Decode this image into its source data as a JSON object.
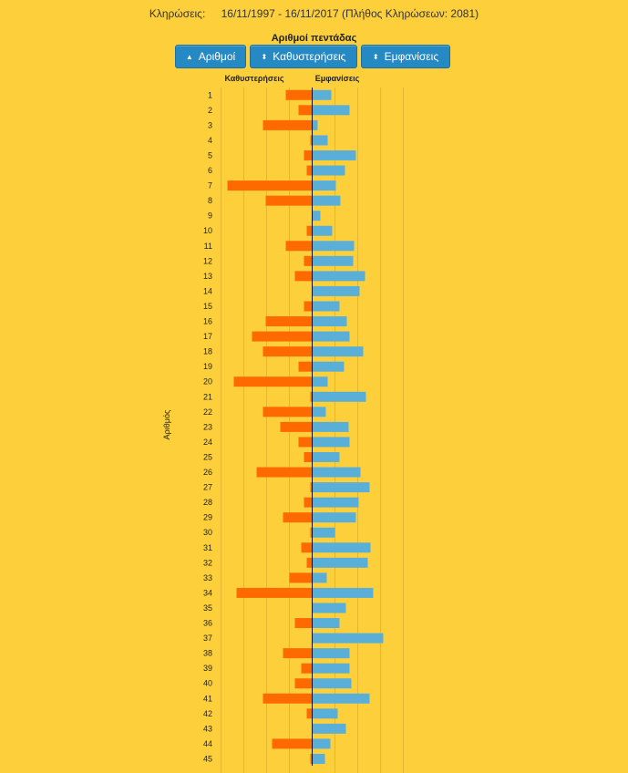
{
  "header": {
    "draws_label": "Κληρώσεις:",
    "range": "16/11/1997 - 16/11/2017",
    "count_text": "(Πλήθος Κληρώσεων: 2081)"
  },
  "buttons": [
    {
      "label": "Αριθμοί",
      "icon": "triangle-up-icon",
      "glyph": "▲"
    },
    {
      "label": "Καθυστερήσεις",
      "icon": "sort-icon",
      "glyph": "⬍"
    },
    {
      "label": "Εμφανίσεις",
      "icon": "sort-icon",
      "glyph": "⬍"
    }
  ],
  "colors": {
    "background": "#fdd03b",
    "delay_bar": "#ff6a00",
    "appearance_bar": "#5aafd8",
    "button": "#2589c3"
  },
  "chart_data": {
    "type": "bar",
    "orientation": "horizontal-diverging",
    "title": "Αριθμοί πεντάδας",
    "ylabel": "Αριθμός",
    "left_series_label": "Καθυστερήσεις",
    "right_series_label": "Εμφανίσεις",
    "categories": [
      "1",
      "2",
      "3",
      "4",
      "5",
      "6",
      "7",
      "8",
      "9",
      "10",
      "11",
      "12",
      "13",
      "14",
      "15",
      "16",
      "17",
      "18",
      "19",
      "20",
      "21",
      "22",
      "23",
      "24",
      "25",
      "26",
      "27",
      "28",
      "29",
      "30",
      "31",
      "32",
      "33",
      "34",
      "35",
      "36",
      "37",
      "38",
      "39",
      "40",
      "41",
      "42",
      "43",
      "44",
      "45"
    ],
    "series": [
      {
        "name": "Καθυστερήσεις",
        "side": "left",
        "values": [
          29,
          15,
          54,
          2,
          9,
          6,
          93,
          51,
          0,
          6,
          29,
          9,
          19,
          0,
          9,
          51,
          66,
          54,
          15,
          86,
          2,
          54,
          35,
          15,
          9,
          61,
          2,
          9,
          32,
          2,
          12,
          6,
          25,
          83,
          0,
          19,
          0,
          32,
          12,
          19,
          54,
          6,
          0,
          44,
          2
        ]
      },
      {
        "name": "Εμφανίσεις",
        "side": "right",
        "values": [
          21,
          41,
          6,
          17,
          48,
          36,
          26,
          31,
          9,
          22,
          46,
          45,
          58,
          52,
          30,
          38,
          41,
          56,
          35,
          17,
          59,
          15,
          40,
          41,
          30,
          53,
          63,
          51,
          48,
          25,
          64,
          61,
          16,
          67,
          37,
          30,
          78,
          41,
          41,
          43,
          63,
          28,
          37,
          20,
          14
        ]
      }
    ],
    "grid": true
  }
}
